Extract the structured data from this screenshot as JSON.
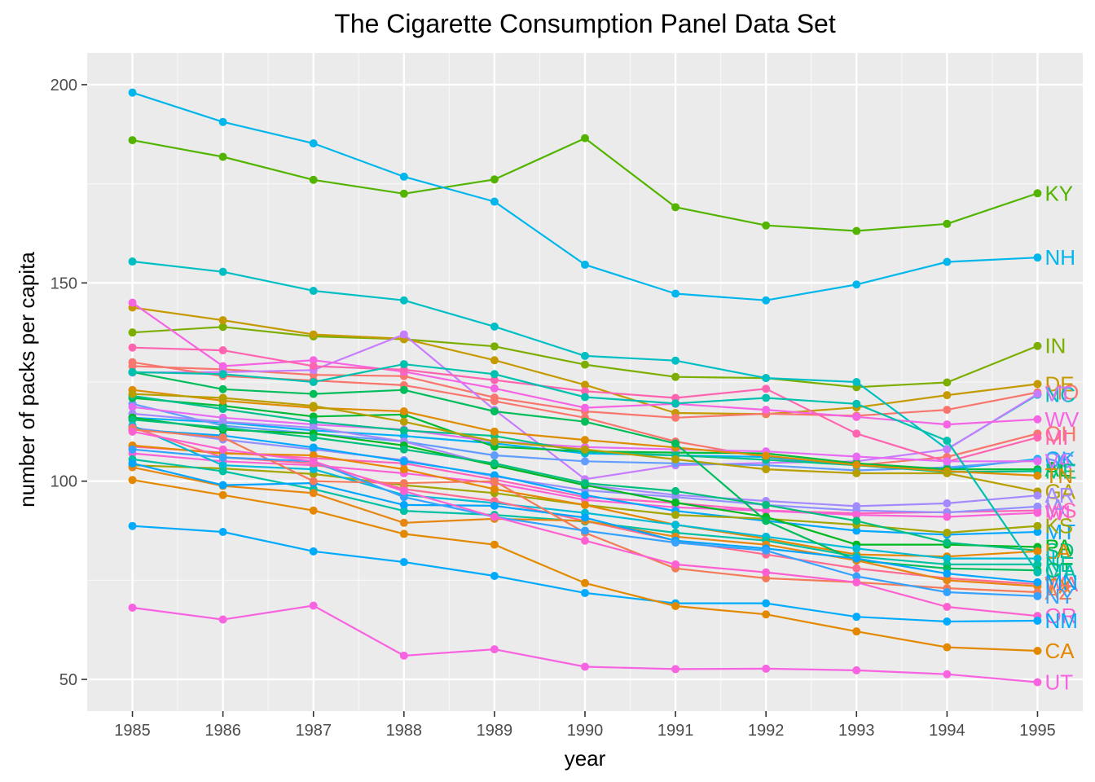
{
  "chart_data": {
    "type": "line",
    "title": "The Cigarette Consumption Panel Data Set",
    "xlabel": "year",
    "ylabel": "number of packs per capita",
    "x": [
      1985,
      1986,
      1987,
      1988,
      1989,
      1990,
      1991,
      1992,
      1993,
      1994,
      1995
    ],
    "xlim": [
      1984.5,
      1995.5
    ],
    "ylim": [
      42,
      208
    ],
    "yticks": [
      50,
      100,
      150,
      200
    ],
    "grid": true,
    "legend": "none",
    "end_labels": true,
    "series": [
      {
        "name": "KY",
        "color": "#53B400",
        "values": [
          186.0,
          181.8,
          176.0,
          172.5,
          176.1,
          186.5,
          169.1,
          164.5,
          163.1,
          164.9,
          172.6
        ]
      },
      {
        "name": "NH",
        "color": "#00B6EB",
        "values": [
          198.0,
          190.6,
          185.2,
          176.8,
          170.5,
          154.6,
          147.3,
          145.6,
          149.6,
          155.3,
          156.4
        ]
      },
      {
        "name": "IN",
        "color": "#7CAE00",
        "values": [
          137.5,
          138.9,
          136.5,
          135.8,
          134.0,
          129.4,
          126.3,
          126.0,
          123.7,
          124.9,
          134.1
        ]
      },
      {
        "name": "DE",
        "color": "#C49A00",
        "values": [
          143.8,
          140.6,
          137.0,
          135.9,
          130.5,
          124.3,
          117.2,
          116.9,
          118.6,
          121.7,
          124.5
        ]
      },
      {
        "name": "MO",
        "color": "#F8766D",
        "values": [
          129.0,
          128.2,
          126.8,
          126.5,
          121.1,
          117.6,
          116.0,
          117.0,
          116.5,
          118.0,
          122.4
        ]
      },
      {
        "name": "NC",
        "color": "#00BFC4",
        "values": [
          155.4,
          152.8,
          148.0,
          145.6,
          139.0,
          131.6,
          130.4,
          126.0,
          125.0,
          108.1,
          121.8
        ]
      },
      {
        "name": "VT",
        "color": "#C77CFF",
        "values": [
          127.4,
          127.5,
          128.0,
          137.0,
          118.0,
          100.5,
          104.0,
          104.6,
          105.0,
          108.0,
          122.0
        ]
      },
      {
        "name": "WV",
        "color": "#F564E3",
        "values": [
          145.0,
          129.0,
          130.5,
          127.6,
          123.4,
          118.5,
          119.5,
          118.0,
          116.2,
          114.3,
          115.6
        ]
      },
      {
        "name": "OH",
        "color": "#F8766D",
        "values": [
          130.0,
          126.5,
          125.4,
          124.2,
          120.2,
          116.0,
          110.0,
          106.0,
          104.0,
          106.1,
          112.0
        ]
      },
      {
        "name": "MI",
        "color": "#FF64B0",
        "values": [
          133.7,
          133.0,
          129.0,
          128.1,
          125.5,
          122.7,
          121.0,
          123.3,
          112.0,
          104.9,
          111.0
        ]
      },
      {
        "name": "OK",
        "color": "#00B0F6",
        "values": [
          116.0,
          114.8,
          112.8,
          111.4,
          109.5,
          107.0,
          106.5,
          106.1,
          104.0,
          103.0,
          105.6
        ]
      },
      {
        "name": "SC",
        "color": "#619CFF",
        "values": [
          119.5,
          114.0,
          112.0,
          110.0,
          106.5,
          105.0,
          104.5,
          104.0,
          102.7,
          103.5,
          105.3
        ]
      },
      {
        "name": "AL",
        "color": "#00BA38",
        "values": [
          121.0,
          119.0,
          116.3,
          116.8,
          108.7,
          107.5,
          107.2,
          107.0,
          104.5,
          103.0,
          103.0
        ]
      },
      {
        "name": "VA",
        "color": "#E76BF3",
        "values": [
          118.7,
          116.0,
          114.3,
          113.0,
          110.0,
          108.6,
          108.0,
          107.5,
          106.2,
          105.0,
          105.0
        ]
      },
      {
        "name": "ME",
        "color": "#00C08B",
        "values": [
          121.5,
          118.2,
          115.0,
          112.8,
          111.4,
          107.4,
          106.5,
          105.4,
          104.0,
          102.3,
          102.5
        ]
      },
      {
        "name": "TN",
        "color": "#DE8C00",
        "values": [
          123.0,
          120.3,
          118.5,
          117.6,
          112.5,
          110.4,
          108.5,
          106.4,
          104.1,
          102.5,
          101.4
        ]
      },
      {
        "name": "GA",
        "color": "#B79F00",
        "values": [
          122.0,
          121.0,
          119.0,
          115.0,
          110.0,
          108.0,
          105.5,
          103.0,
          102.0,
          102.0,
          97.4
        ]
      },
      {
        "name": "AR",
        "color": "#A58AFF",
        "values": [
          117.0,
          115.0,
          113.5,
          110.0,
          104.0,
          99.0,
          96.5,
          95.0,
          93.7,
          94.4,
          96.4
        ]
      },
      {
        "name": "MS",
        "color": "#FF62BC",
        "values": [
          108.7,
          107.2,
          105.8,
          104.5,
          100.4,
          96.0,
          94.5,
          92.6,
          91.9,
          92.2,
          92.6
        ]
      },
      {
        "name": "IA",
        "color": "#9590FF",
        "values": [
          113.5,
          110.5,
          108.0,
          105.3,
          101.2,
          97.7,
          96.0,
          94.0,
          92.6,
          92.1,
          93.6
        ]
      },
      {
        "name": "WI",
        "color": "#FB61D7",
        "values": [
          107.0,
          105.0,
          104.0,
          102.0,
          99.5,
          95.3,
          93.4,
          92.5,
          91.5,
          91.0,
          92.0
        ]
      },
      {
        "name": "MT",
        "color": "#00A9FF",
        "values": [
          113.0,
          111.5,
          108.5,
          105.0,
          101.5,
          96.5,
          92.5,
          90.0,
          87.5,
          86.5,
          87.2
        ]
      },
      {
        "name": "KS",
        "color": "#A3A500",
        "values": [
          104.0,
          103.2,
          101.8,
          99.0,
          97.0,
          94.0,
          91.5,
          90.5,
          89.0,
          87.0,
          88.7
        ]
      },
      {
        "name": "PA",
        "color": "#00B81F",
        "values": [
          116.0,
          113.0,
          112.0,
          109.0,
          104.0,
          99.0,
          94.6,
          91.0,
          84.0,
          84.0,
          83.4
        ]
      },
      {
        "name": "SD",
        "color": "#00BF7D",
        "values": [
          115.5,
          113.5,
          111.0,
          108.0,
          104.5,
          99.5,
          97.5,
          94.0,
          90.0,
          84.5,
          82.5
        ]
      },
      {
        "name": "LA",
        "color": "#E58700",
        "values": [
          109.0,
          107.0,
          106.5,
          103.0,
          98.0,
          94.0,
          89.0,
          85.5,
          81.5,
          81.0,
          82.3
        ]
      },
      {
        "name": "IL",
        "color": "#00BCD8",
        "values": [
          114.0,
          104.0,
          103.0,
          96.5,
          94.5,
          92.0,
          89.0,
          86.0,
          83.0,
          80.5,
          80.5
        ]
      },
      {
        "name": "NE",
        "color": "#00C1A3",
        "values": [
          105.5,
          102.5,
          98.0,
          92.5,
          91.5,
          89.8,
          87.0,
          85.0,
          81.0,
          79.0,
          79.0
        ]
      },
      {
        "name": "CT",
        "color": "#00BD5C",
        "values": [
          127.5,
          123.2,
          122.0,
          123.0,
          117.6,
          115.0,
          109.5,
          90.0,
          80.0,
          78.0,
          77.5
        ]
      },
      {
        "name": "MA",
        "color": "#00C0AF",
        "values": [
          127.5,
          127.0,
          125.0,
          129.5,
          127.0,
          121.2,
          119.6,
          121.0,
          119.5,
          110.2,
          77.0
        ]
      },
      {
        "name": "WA",
        "color": "#FF6C91",
        "values": [
          113.5,
          106.0,
          104.5,
          98.0,
          95.0,
          90.0,
          85.0,
          81.5,
          78.0,
          75.5,
          74.0
        ]
      },
      {
        "name": "TX",
        "color": "#E68613",
        "values": [
          103.5,
          98.8,
          97.0,
          89.5,
          90.5,
          90.0,
          86.0,
          84.0,
          80.0,
          75.0,
          73.5
        ]
      },
      {
        "name": "MN",
        "color": "#00A5FF",
        "values": [
          104.5,
          99.0,
          99.5,
          94.0,
          93.8,
          90.8,
          85.0,
          83.0,
          80.5,
          76.7,
          74.5
        ]
      },
      {
        "name": "AZ",
        "color": "#F37B59",
        "values": [
          113.0,
          111.0,
          100.0,
          99.5,
          100.0,
          87.0,
          78.0,
          75.5,
          74.5,
          73.0,
          72.0
        ]
      },
      {
        "name": "NY",
        "color": "#35A2FF",
        "values": [
          108.0,
          106.0,
          105.0,
          96.0,
          91.0,
          87.5,
          84.5,
          82.5,
          76.0,
          72.0,
          71.0
        ]
      },
      {
        "name": "OR",
        "color": "#FD61D1",
        "values": [
          112.5,
          108.0,
          105.0,
          97.5,
          91.0,
          85.0,
          79.0,
          77.0,
          74.5,
          68.3,
          66.0
        ]
      },
      {
        "name": "NM",
        "color": "#00ABFD",
        "values": [
          88.7,
          87.2,
          82.3,
          79.6,
          76.1,
          71.8,
          69.2,
          69.2,
          65.8,
          64.6,
          64.8
        ]
      },
      {
        "name": "CA",
        "color": "#E38900",
        "values": [
          100.3,
          96.5,
          92.6,
          86.7,
          84.0,
          74.3,
          68.5,
          66.4,
          62.1,
          58.1,
          57.2
        ]
      },
      {
        "name": "UT",
        "color": "#F763E0",
        "values": [
          68.1,
          65.1,
          68.6,
          56.0,
          57.6,
          53.2,
          52.6,
          52.7,
          52.3,
          51.3,
          49.3
        ]
      }
    ]
  }
}
